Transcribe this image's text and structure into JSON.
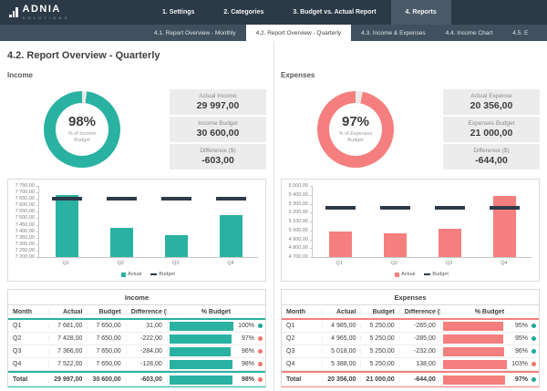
{
  "page_title": "4.2. Report Overview - Quarterly",
  "header": {
    "logo": {
      "name": "ADNIA",
      "subtitle": "SOLUTIONS",
      "icon": "bar-chart-logo-icon"
    },
    "nav": [
      {
        "label": "1. Settings",
        "active": false
      },
      {
        "label": "2. Categories",
        "active": false
      },
      {
        "label": "3. Budget vs. Actual Report",
        "active": false
      },
      {
        "label": "4. Reports",
        "active": true
      }
    ],
    "tabs": [
      {
        "label": "4.1. Report Overview - Monthly",
        "active": false
      },
      {
        "label": "4.2. Report Overview - Quarterly",
        "active": true
      },
      {
        "label": "4.3. Income & Expenses",
        "active": false
      },
      {
        "label": "4.4. Income Chart",
        "active": false
      },
      {
        "label": "4.5. E",
        "active": false,
        "truncated": true
      }
    ]
  },
  "colors": {
    "teal": "#29b2a2",
    "coral": "#f57f7f",
    "dark_navy": "#2c3947",
    "budget_marker": "#2e3b48",
    "donut_rest": "#e9e9e9",
    "dot_good": "#1cab9c",
    "dot_bad": "#f4736e",
    "stat_box_bg": "#ececec"
  },
  "chart_data": [
    {
      "id": "income-donut",
      "type": "donut",
      "label": "98%",
      "value": 98,
      "caption": "% of Income Budget",
      "color": "#29b2a2",
      "rest_color": "#e9e9e9"
    },
    {
      "id": "expenses-donut",
      "type": "donut",
      "label": "97%",
      "value": 97,
      "caption": "% of Expenses Budget",
      "color": "#f57f7f",
      "rest_color": "#e9e9e9"
    },
    {
      "id": "income-quarterly-bars",
      "type": "bar",
      "categories": [
        "Q1",
        "Q2",
        "Q3",
        "Q4"
      ],
      "series": [
        {
          "name": "Actual",
          "style": "column",
          "color": "#29b2a2",
          "values": [
            7681,
            7428,
            7366,
            7522
          ]
        },
        {
          "name": "Budget",
          "style": "dash",
          "color": "#2e3b48",
          "values": [
            7650,
            7650,
            7650,
            7650
          ]
        }
      ],
      "ylim": [
        7200,
        7750
      ],
      "yticks": [
        "7 750,00",
        "7 700,00",
        "7 650,00",
        "7 600,00",
        "7 550,00",
        "7 500,00",
        "7 450,00",
        "7 400,00",
        "7 350,00",
        "7 300,00",
        "7 250,00",
        "7 200,00"
      ],
      "grid": false,
      "legend_position": "bottom"
    },
    {
      "id": "expenses-quarterly-bars",
      "type": "bar",
      "categories": [
        "Q1",
        "Q2",
        "Q3",
        "Q4"
      ],
      "series": [
        {
          "name": "Actual",
          "style": "column",
          "color": "#f57f7f",
          "values": [
            4985,
            4965,
            5018,
            5388
          ]
        },
        {
          "name": "Budget",
          "style": "dash",
          "color": "#2e3b48",
          "values": [
            5250,
            5250,
            5250,
            5250
          ]
        }
      ],
      "ylim": [
        4700,
        5500
      ],
      "yticks": [
        "5 500,00",
        "5 400,00",
        "5 300,00",
        "5 200,00",
        "5 100,00",
        "5 000,00",
        "4 900,00",
        "4 800,00",
        "4 700,00"
      ],
      "grid": false,
      "legend_position": "bottom"
    }
  ],
  "income": {
    "section_label": "Income",
    "accent": "#29b2a2",
    "donut_ref": 0,
    "chart_ref": 2,
    "stats": [
      {
        "label": "Actual Income",
        "value": "29 997,00"
      },
      {
        "label": "Income Budget",
        "value": "30 600,00"
      },
      {
        "label": "Difference ($)",
        "value": "-603,00"
      }
    ],
    "table": {
      "title": "Income",
      "columns": [
        "Month",
        "Actual",
        "Budget",
        "Difference ($)",
        "% Budget"
      ],
      "rows": [
        {
          "month": "Q1",
          "actual": "7 681,00",
          "budget": "7 650,00",
          "diff": "31,00",
          "pct": "100%",
          "pct_value": 100,
          "dot": "good"
        },
        {
          "month": "Q2",
          "actual": "7 428,00",
          "budget": "7 650,00",
          "diff": "-222,00",
          "pct": "97%",
          "pct_value": 97,
          "dot": "bad"
        },
        {
          "month": "Q3",
          "actual": "7 366,00",
          "budget": "7 650,00",
          "diff": "-284,00",
          "pct": "96%",
          "pct_value": 96,
          "dot": "bad"
        },
        {
          "month": "Q4",
          "actual": "7 522,00",
          "budget": "7 650,00",
          "diff": "-128,00",
          "pct": "98%",
          "pct_value": 98,
          "dot": "bad"
        }
      ],
      "total": {
        "month": "Total",
        "actual": "29 997,00",
        "budget": "30 600,00",
        "diff": "-603,00",
        "pct": "98%",
        "pct_value": 98,
        "dot": "bad"
      }
    }
  },
  "expenses": {
    "section_label": "Expenses",
    "accent": "#f57f7f",
    "donut_ref": 1,
    "chart_ref": 3,
    "stats": [
      {
        "label": "Actual Expense",
        "value": "20 356,00"
      },
      {
        "label": "Expenses Budget",
        "value": "21 000,00"
      },
      {
        "label": "Difference ($)",
        "value": "-644,00"
      }
    ],
    "table": {
      "title": "Expenses",
      "columns": [
        "Month",
        "Actual",
        "Budget",
        "Difference ($)",
        "% Budget"
      ],
      "rows": [
        {
          "month": "Q1",
          "actual": "4 985,00",
          "budget": "5 250,00",
          "diff": "-265,00",
          "pct": "95%",
          "pct_value": 95,
          "dot": "good"
        },
        {
          "month": "Q2",
          "actual": "4 965,00",
          "budget": "5 250,00",
          "diff": "-285,00",
          "pct": "95%",
          "pct_value": 95,
          "dot": "good"
        },
        {
          "month": "Q3",
          "actual": "5 018,00",
          "budget": "5 250,00",
          "diff": "-232,00",
          "pct": "96%",
          "pct_value": 96,
          "dot": "good"
        },
        {
          "month": "Q4",
          "actual": "5 388,00",
          "budget": "5 250,00",
          "diff": "138,00",
          "pct": "103%",
          "pct_value": 103,
          "dot": "bad"
        }
      ],
      "total": {
        "month": "Total",
        "actual": "20 356,00",
        "budget": "21 000,00",
        "diff": "-644,00",
        "pct": "97%",
        "pct_value": 97,
        "dot": "good"
      }
    }
  }
}
